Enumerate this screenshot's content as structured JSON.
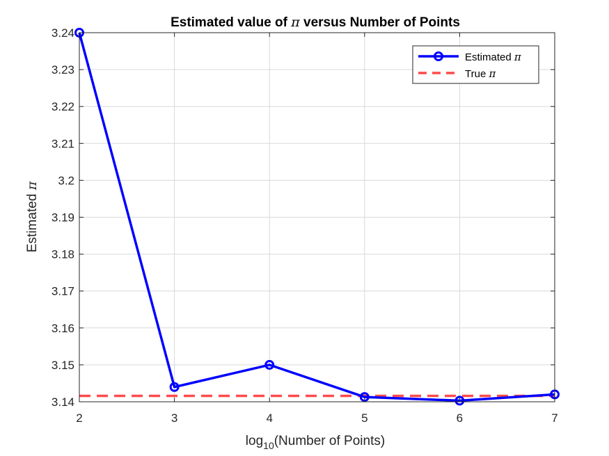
{
  "chart_data": {
    "type": "line",
    "title_prefix": "Estimated value of ",
    "title_symbol": "π",
    "title_suffix": " versus Number of Points",
    "xlabel_prefix": "log",
    "xlabel_sub": "10",
    "xlabel_suffix": "(Number of Points)",
    "ylabel_prefix": "Estimated ",
    "ylabel_symbol": "π",
    "xlim": [
      2,
      7
    ],
    "ylim": [
      3.14,
      3.24
    ],
    "xticks": [
      2,
      3,
      4,
      5,
      6,
      7
    ],
    "yticks": [
      3.14,
      3.15,
      3.16,
      3.17,
      3.18,
      3.19,
      3.2,
      3.21,
      3.22,
      3.23,
      3.24
    ],
    "ytick_labels": [
      "3.14",
      "3.15",
      "3.16",
      "3.17",
      "3.18",
      "3.19",
      "3.2",
      "3.21",
      "3.22",
      "3.23",
      "3.24"
    ],
    "grid": true,
    "legend_position": "top-right",
    "series": [
      {
        "name_prefix": "Estimated ",
        "name_symbol": "π",
        "style": "solid-circle-markers",
        "color": "#0000ff",
        "x": [
          2,
          3,
          4,
          5,
          6,
          7
        ],
        "values": [
          3.24,
          3.144,
          3.15,
          3.1413,
          3.1403,
          3.142
        ]
      },
      {
        "name_prefix": "True ",
        "name_symbol": "π",
        "style": "dashed",
        "color": "#ff0000",
        "x": [
          2,
          7
        ],
        "values": [
          3.14159,
          3.14159
        ]
      }
    ]
  }
}
